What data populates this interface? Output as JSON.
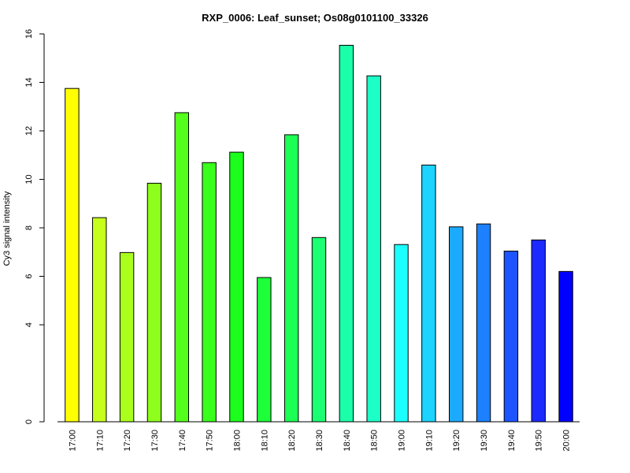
{
  "chart_data": {
    "type": "bar",
    "title": "RXP_0006: Leaf_sunset; Os08g0101100_33326",
    "xlabel": "",
    "ylabel": "Cy3 signal intensity",
    "ylim": [
      0,
      16
    ],
    "y_ticks": [
      "0",
      "4",
      "6",
      "8",
      "10",
      "12",
      "14",
      "16"
    ],
    "grid": false,
    "legend": "none",
    "categories": [
      "17:00",
      "17:10",
      "17:20",
      "17:30",
      "17:40",
      "17:50",
      "18:00",
      "18:10",
      "18:20",
      "18:30",
      "18:40",
      "18:50",
      "19:00",
      "19:10",
      "19:20",
      "19:30",
      "19:40",
      "19:50",
      "20:00"
    ],
    "values": [
      13.75,
      8.42,
      6.98,
      9.84,
      12.75,
      10.69,
      11.12,
      5.95,
      11.84,
      7.6,
      15.53,
      14.27,
      7.31,
      10.59,
      8.04,
      8.16,
      7.04,
      7.5,
      6.2
    ],
    "colors": [
      "#FFFF00",
      "#C7FF1C",
      "#AAFF1C",
      "#8EFF1C",
      "#55FF1C",
      "#39FF1C",
      "#1CFF1C",
      "#1CFF39",
      "#1CFF55",
      "#1CFF72",
      "#1CFFAA",
      "#1CFFC7",
      "#1CFFFF",
      "#1CD4FF",
      "#1CAAFF",
      "#1C80FF",
      "#1C55FF",
      "#1C2AFF",
      "#0000FF"
    ]
  }
}
